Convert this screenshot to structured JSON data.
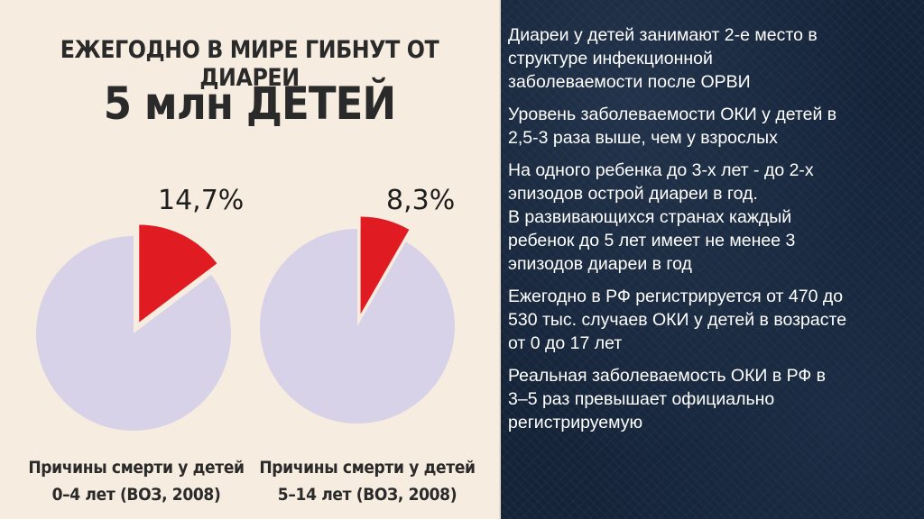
{
  "headline": {
    "line1": "ЕЖЕГОДНО В МИРЕ ГИБНУТ ОТ ДИАРЕИ",
    "line2": "5 млн ДЕТЕЙ"
  },
  "chart_data": [
    {
      "type": "pie",
      "slices": [
        {
          "label": "14,7%",
          "value": 14.7,
          "color": "#e01b22",
          "exploded": true
        },
        {
          "label": "",
          "value": 85.3,
          "color": "#d7d2e7",
          "exploded": false
        }
      ],
      "caption": [
        "Причины смерти у детей",
        "0–4 лет (ВОЗ, 2008)"
      ]
    },
    {
      "type": "pie",
      "slices": [
        {
          "label": "8,3%",
          "value": 8.3,
          "color": "#e01b22",
          "exploded": true
        },
        {
          "label": "",
          "value": 91.7,
          "color": "#d7d2e7",
          "exploded": false
        }
      ],
      "caption": [
        "Причины смерти у детей",
        "5–14 лет (ВОЗ, 2008)"
      ]
    }
  ],
  "facts": [
    [
      "Диареи у детей занимают 2-е место в",
      "структуре инфекционной",
      "заболеваемости после ОРВИ"
    ],
    [
      "Уровень заболеваемости ОКИ у детей в",
      "2,5-3 раза выше, чем у взрослых"
    ],
    [
      "На одного ребенка до 3-х лет - до 2-х",
      "эпизодов острой диареи в год.",
      "В развивающихся странах каждый",
      "ребенок до 5 лет имеет не менее 3",
      "эпизодов диареи в год"
    ],
    [
      "Ежегодно в РФ регистрируется от 470 до",
      "530 тыс. случаев ОКИ у детей в возрасте",
      "от 0 до 17 лет"
    ],
    [
      "Реальная заболеваемость ОКИ в РФ в",
      "3–5 раз превышает официально",
      "регистрируемую"
    ]
  ],
  "colors": {
    "left_background": "#f6ece0",
    "right_background": "#142338",
    "highlight": "#e01b22",
    "pie_rest": "#d7d2e7"
  }
}
